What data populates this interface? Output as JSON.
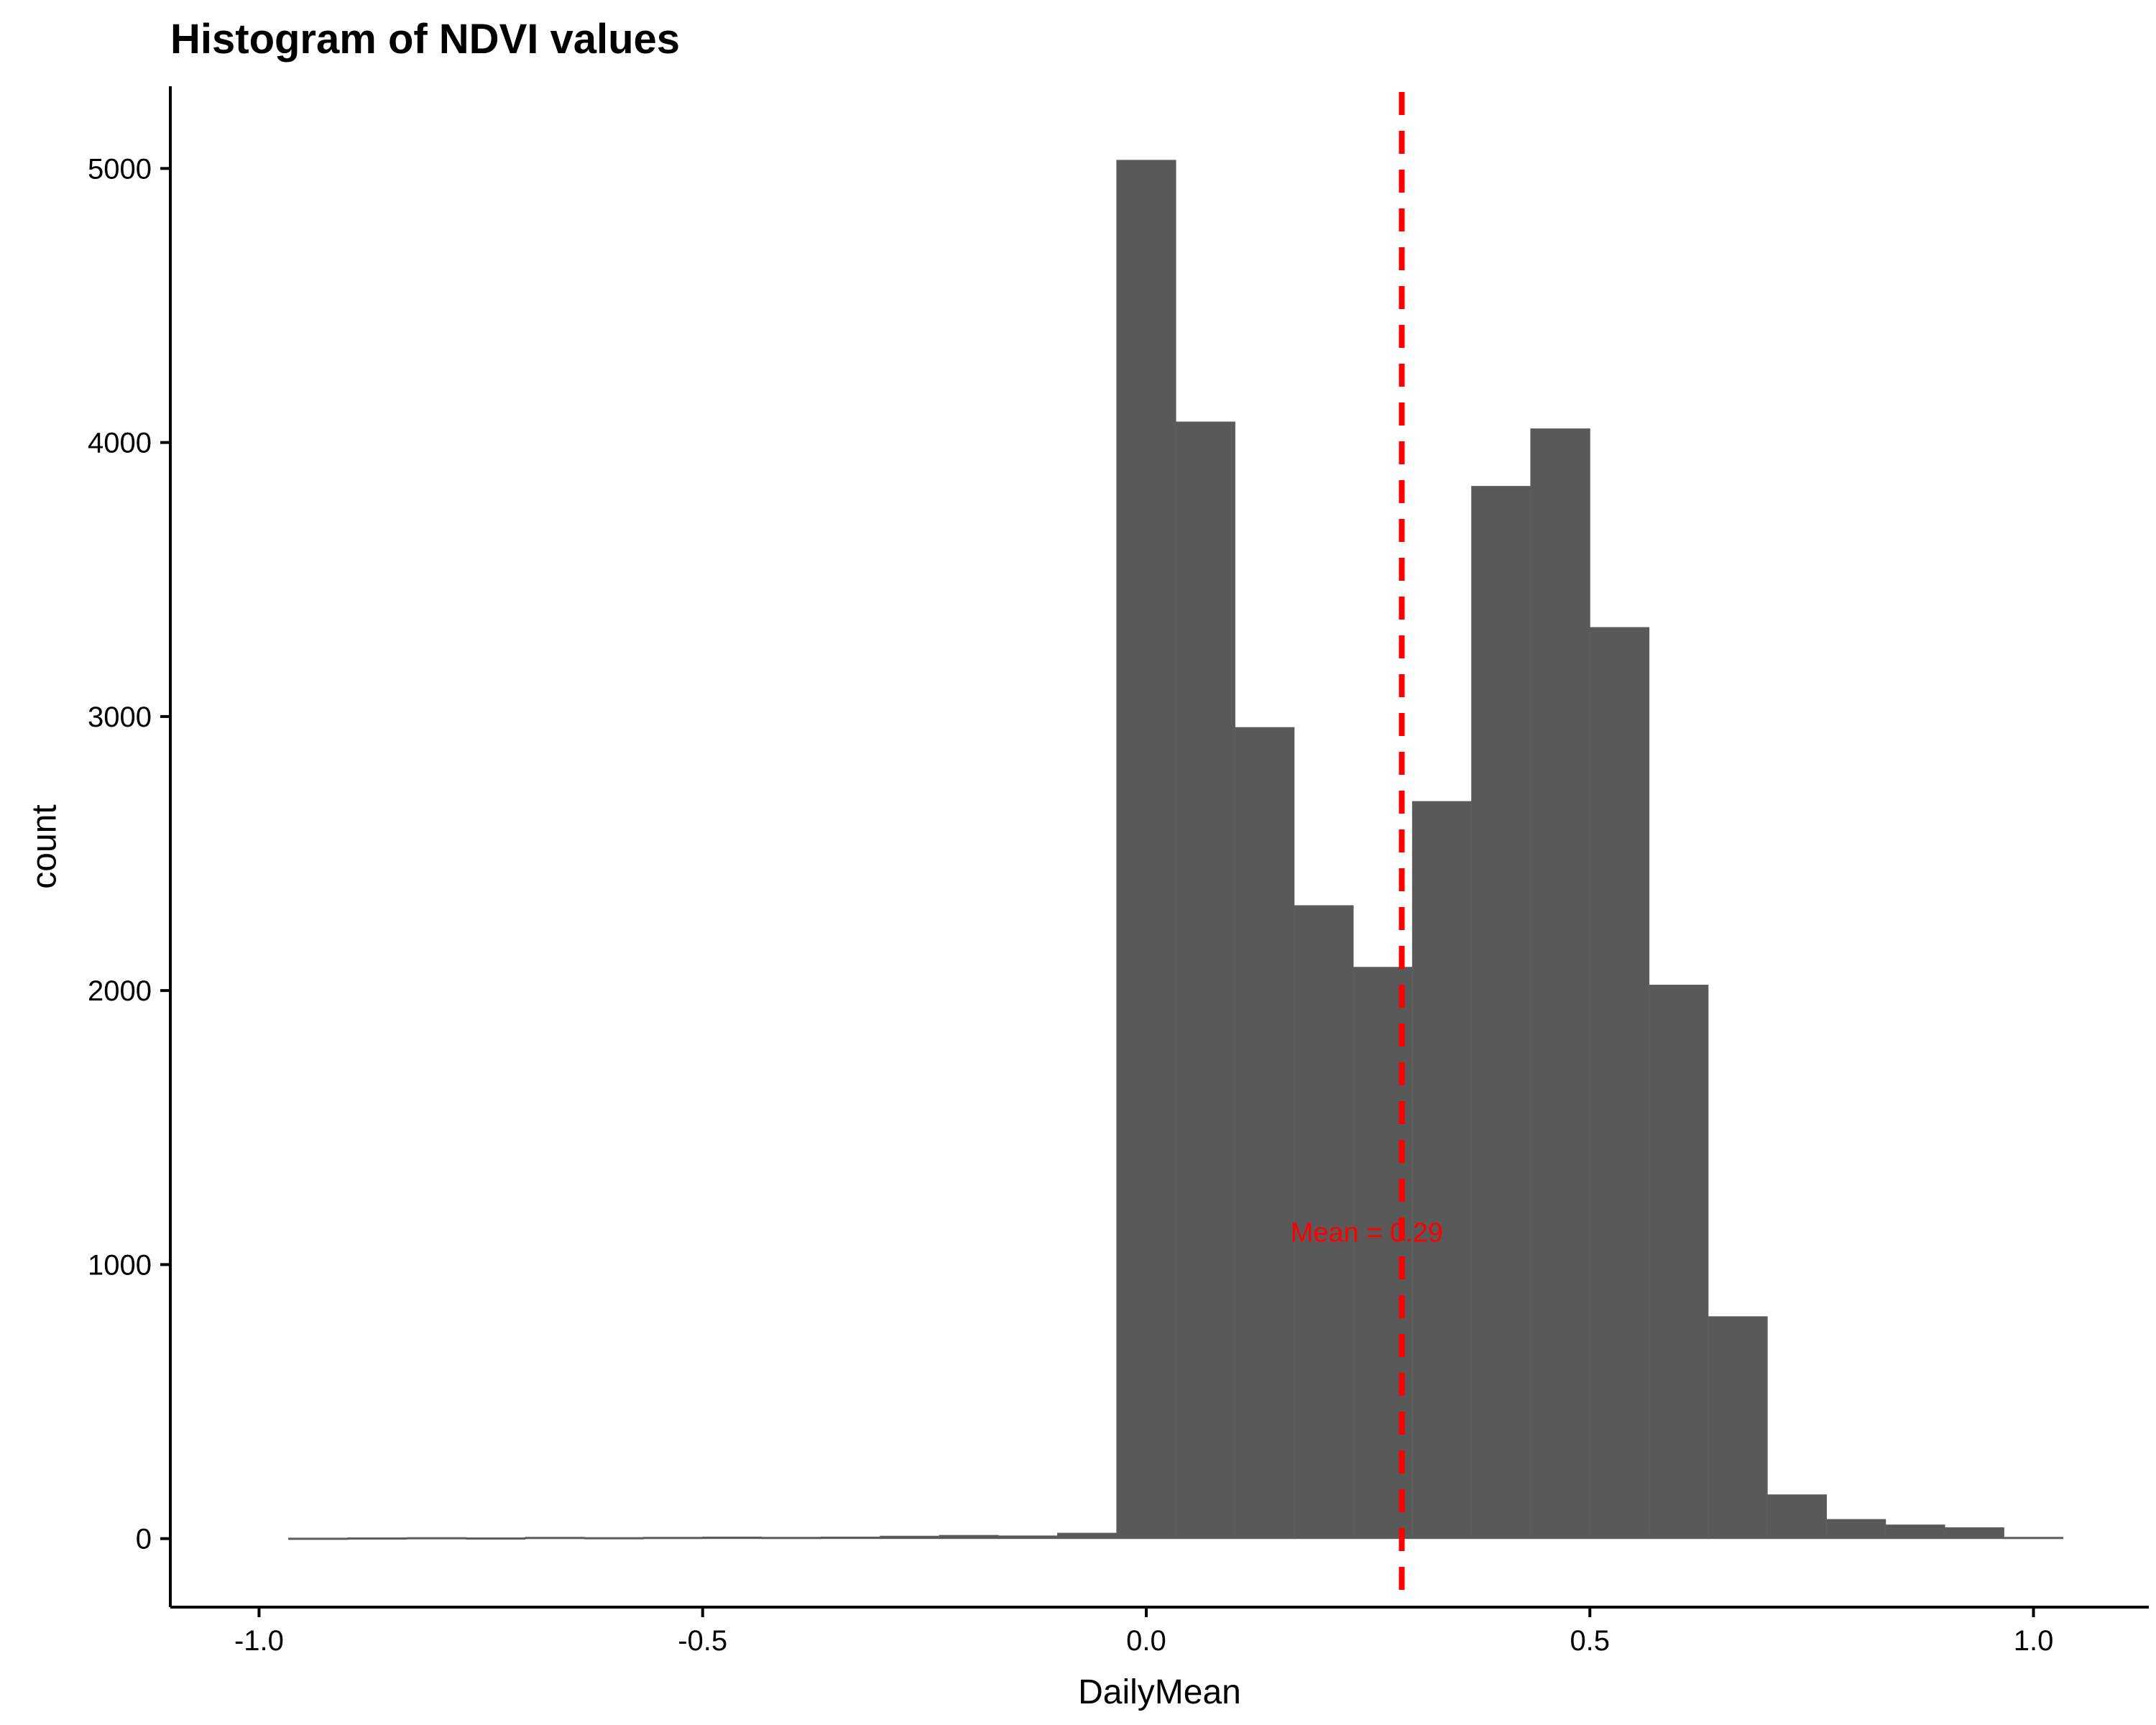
{
  "chart_data": {
    "type": "bar",
    "title": "Histogram of NDVI values",
    "xlabel": "DailyMean",
    "ylabel": "count",
    "xlim": [
      -1.1,
      1.13
    ],
    "ylim": [
      -250,
      5300
    ],
    "xticks": [
      -1.0,
      -0.5,
      0.0,
      0.5,
      1.0
    ],
    "xtick_labels": [
      "-1.0",
      "-0.5",
      "0.0",
      "0.5",
      "1.0"
    ],
    "yticks": [
      0,
      1000,
      2000,
      3000,
      4000,
      5000
    ],
    "ytick_labels": [
      "0",
      "1000",
      "2000",
      "3000",
      "4000",
      "5000"
    ],
    "bar_color": "#595959",
    "bins": [
      {
        "x0": -0.9667,
        "x1": -0.9,
        "count": 2
      },
      {
        "x0": -0.9,
        "x1": -0.8333,
        "count": 3
      },
      {
        "x0": -0.8333,
        "x1": -0.7667,
        "count": 4
      },
      {
        "x0": -0.7667,
        "x1": -0.7,
        "count": 3
      },
      {
        "x0": -0.7,
        "x1": -0.6333,
        "count": 5
      },
      {
        "x0": -0.6333,
        "x1": -0.5667,
        "count": 4
      },
      {
        "x0": -0.5667,
        "x1": -0.5,
        "count": 5
      },
      {
        "x0": -0.5,
        "x1": -0.4333,
        "count": 6
      },
      {
        "x0": -0.4333,
        "x1": -0.3667,
        "count": 5
      },
      {
        "x0": -0.3667,
        "x1": -0.3,
        "count": 6
      },
      {
        "x0": -0.3,
        "x1": -0.2333,
        "count": 9
      },
      {
        "x0": -0.2333,
        "x1": -0.1667,
        "count": 12
      },
      {
        "x0": -0.1667,
        "x1": -0.1,
        "count": 10
      },
      {
        "x0": -0.1,
        "x1": -0.0333,
        "count": 20
      },
      {
        "x0": -0.0333,
        "x1": 0.0333,
        "count": 5030
      },
      {
        "x0": 0.0333,
        "x1": 0.1,
        "count": 4075
      },
      {
        "x0": 0.1,
        "x1": 0.1667,
        "count": 2960
      },
      {
        "x0": 0.1667,
        "x1": 0.2333,
        "count": 2310
      },
      {
        "x0": 0.2333,
        "x1": 0.3,
        "count": 2085
      },
      {
        "x0": 0.3,
        "x1": 0.3667,
        "count": 2690
      },
      {
        "x0": 0.3667,
        "x1": 0.4333,
        "count": 3840
      },
      {
        "x0": 0.4333,
        "x1": 0.5,
        "count": 4050
      },
      {
        "x0": 0.5,
        "x1": 0.5667,
        "count": 3325
      },
      {
        "x0": 0.5667,
        "x1": 0.6333,
        "count": 2020
      },
      {
        "x0": 0.6333,
        "x1": 0.7,
        "count": 810
      },
      {
        "x0": 0.7,
        "x1": 0.7667,
        "count": 160
      },
      {
        "x0": 0.7667,
        "x1": 0.8333,
        "count": 70
      },
      {
        "x0": 0.8333,
        "x1": 0.9,
        "count": 50
      },
      {
        "x0": 0.9,
        "x1": 0.9667,
        "count": 40
      },
      {
        "x0": 0.9667,
        "x1": 1.0333,
        "count": 5
      }
    ],
    "mean_line": {
      "x": 0.288,
      "color": "#ff0000",
      "style": "dashed"
    },
    "annotation": {
      "text": "Mean =  0.29",
      "x": 0.2,
      "y": 1120,
      "color": "#ff0000"
    }
  }
}
